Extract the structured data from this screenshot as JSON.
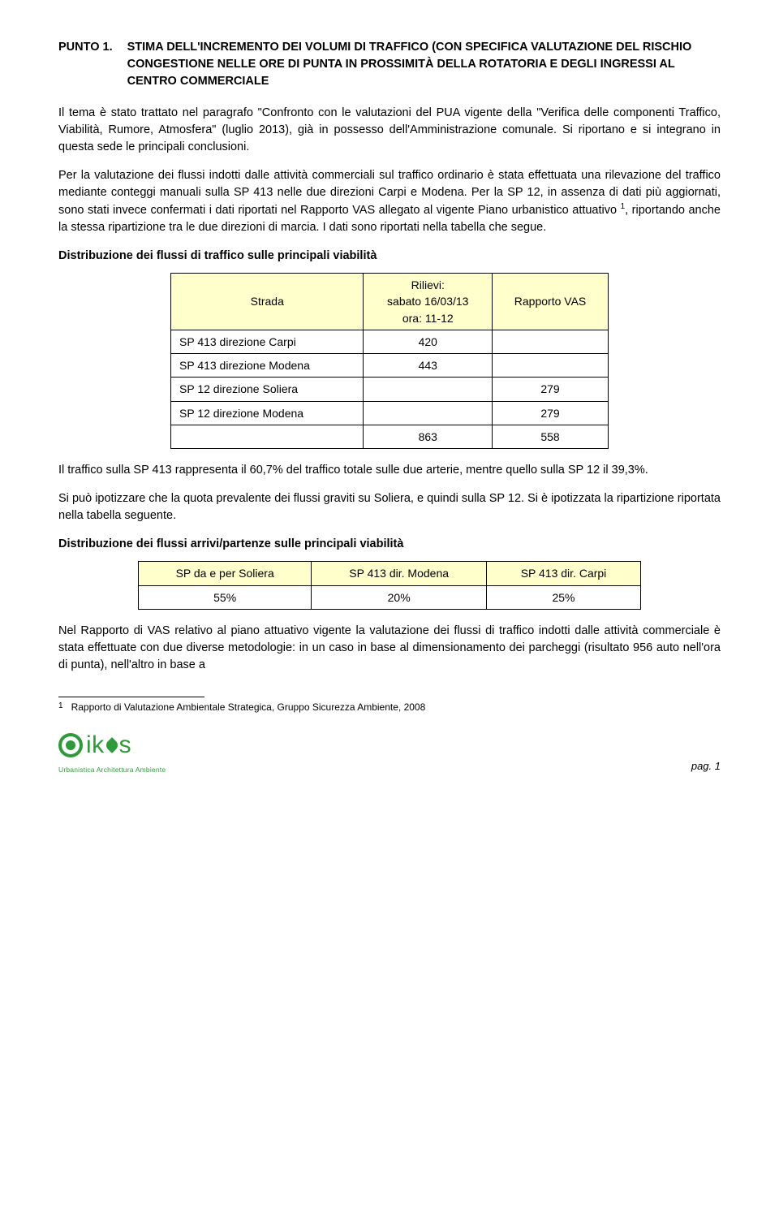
{
  "heading": {
    "label": "PUNTO 1.",
    "title": "STIMA DELL'INCREMENTO DEI VOLUMI DI TRAFFICO (CON SPECIFICA VALUTAZIONE DEL RISCHIO CONGESTIONE NELLE ORE DI PUNTA IN PROSSIMITÀ DELLA ROTATORIA E DEGLI INGRESSI AL CENTRO COMMERCIALE"
  },
  "para1": "Il tema è stato trattato nel paragrafo \"Confronto con le valutazioni del PUA vigente della \"Verifica delle componenti Traffico, Viabilità, Rumore, Atmosfera\" (luglio 2013), già in possesso dell'Amministrazione comunale. Si riportano e si integrano in questa sede le principali conclusioni.",
  "para2a": "Per la valutazione dei flussi indotti dalle attività commerciali sul traffico ordinario è stata effettuata una rilevazione del traffico mediante conteggi manuali sulla SP 413 nelle due direzioni Carpi e Modena. Per la SP 12, in assenza di dati più aggiornati, sono stati invece confermati i dati riportati nel Rapporto VAS allegato al vigente Piano urbanistico attuativo ",
  "para2b": ", riportando anche la stessa ripartizione tra le due direzioni di marcia. I dati sono riportati nella tabella che segue.",
  "sub1": "Distribuzione dei flussi di traffico sulle principali viabilità",
  "table1": {
    "header_bg": "#ffffcc",
    "cols": [
      {
        "label": "Strada"
      },
      {
        "label": "Rilievi:\nsabato 16/03/13\nora: 11-12"
      },
      {
        "label": "Rapporto VAS"
      }
    ],
    "rows": [
      [
        "SP 413 direzione Carpi",
        "420",
        ""
      ],
      [
        "SP 413 direzione Modena",
        "443",
        ""
      ],
      [
        "SP 12 direzione Soliera",
        "",
        "279"
      ],
      [
        "SP 12 direzione Modena",
        "",
        "279"
      ]
    ],
    "total": [
      "",
      "863",
      "558"
    ]
  },
  "para3": "Il traffico sulla SP 413 rappresenta il 60,7% del traffico totale sulle due arterie, mentre quello sulla SP 12 il 39,3%.",
  "para4": "Si può ipotizzare che la quota prevalente dei flussi graviti su Soliera, e quindi sulla SP 12. Si è ipotizzata la ripartizione riportata nella tabella seguente.",
  "sub2": "Distribuzione dei flussi arrivi/partenze  sulle principali viabilità",
  "table2": {
    "header_bg": "#ffffcc",
    "cols": [
      "SP da e per Soliera",
      "SP 413 dir. Modena",
      "SP 413 dir. Carpi"
    ],
    "row": [
      "55%",
      "20%",
      "25%"
    ]
  },
  "para5": "Nel Rapporto di VAS relativo al piano attuativo vigente la valutazione dei flussi di traffico indotti dalle attività commerciale è stata effettuate con due diverse metodologie: in un caso in base al dimensionamento dei parcheggi (risultato 956 auto nell'ora di punta), nell'altro in base a",
  "footnote": {
    "num": "1",
    "text": "Rapporto di Valutazione Ambientale Strategica, Gruppo Sicurezza Ambiente, 2008"
  },
  "logo": {
    "text1": "ik",
    "text2": "s",
    "sub": "Urbanistica Architettura Ambiente"
  },
  "page": "pag. 1"
}
